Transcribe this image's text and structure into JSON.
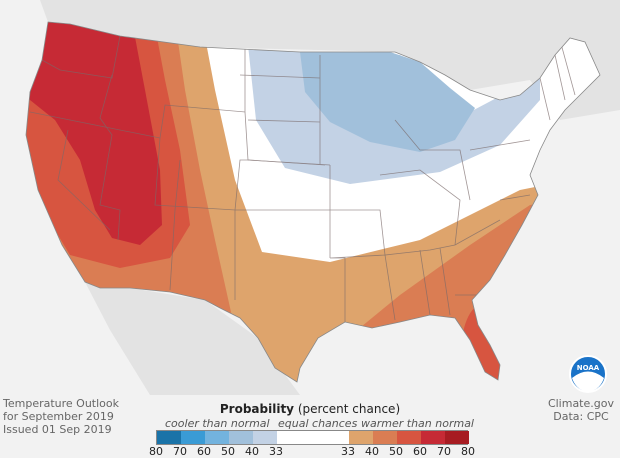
{
  "title_block": {
    "line1": "Temperature Outlook",
    "line2": "for September 2019",
    "line3": "Issued 01 Sep 2019"
  },
  "credit": {
    "line1": "Climate.gov",
    "line2": "Data: CPC"
  },
  "logo": "NOAA",
  "legend": {
    "title_bold": "Probability",
    "title_rest": "(percent chance)",
    "cooler_label": "cooler than normal",
    "equal_label": "equal chances",
    "warmer_label": "warmer than normal",
    "cool_colors": [
      "#1a73a8",
      "#3a9bd5",
      "#73b3de",
      "#a1c0db",
      "#c3d2e5"
    ],
    "warm_colors": [
      "#dea46c",
      "#da7d53",
      "#d75540",
      "#c62a35",
      "#a71c22"
    ],
    "cool_ticks": [
      "80",
      "70",
      "60",
      "50",
      "40",
      "33"
    ],
    "warm_ticks": [
      "33",
      "40",
      "50",
      "60",
      "70",
      "80"
    ]
  }
}
